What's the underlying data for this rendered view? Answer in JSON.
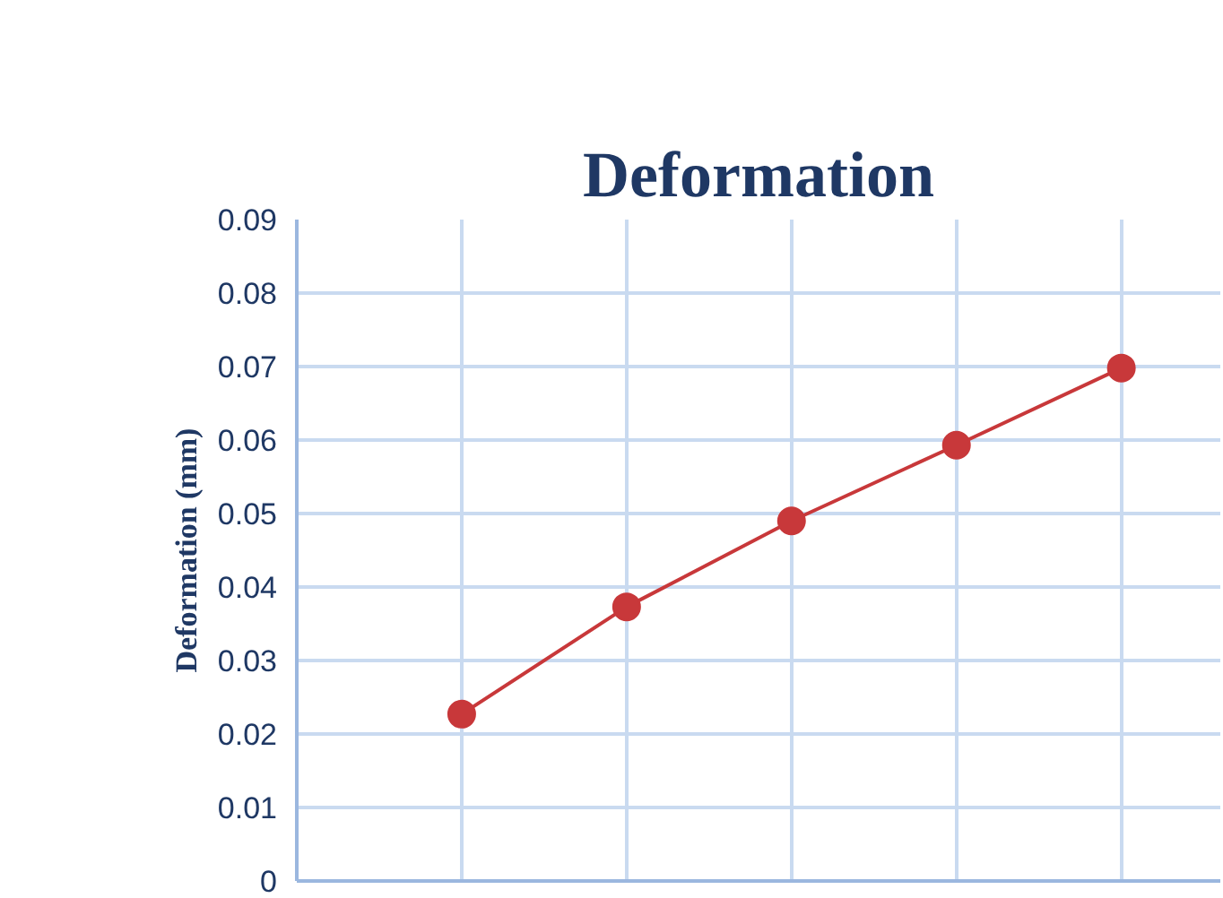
{
  "chart_data": {
    "type": "line",
    "title": "Deformation",
    "ylabel": "Deformation (mm)",
    "categories": [
      null,
      null,
      null,
      null,
      null
    ],
    "ylim": [
      0,
      0.09
    ],
    "yticks": [
      0,
      0.01,
      0.02,
      0.03,
      0.04,
      0.05,
      0.06,
      0.07,
      0.08,
      0.09
    ],
    "grid": true,
    "marker": "circle",
    "series": [
      {
        "color": "#c8383a",
        "values": [
          0.0227,
          0.0373,
          0.049,
          0.0593,
          0.0698
        ]
      }
    ]
  }
}
